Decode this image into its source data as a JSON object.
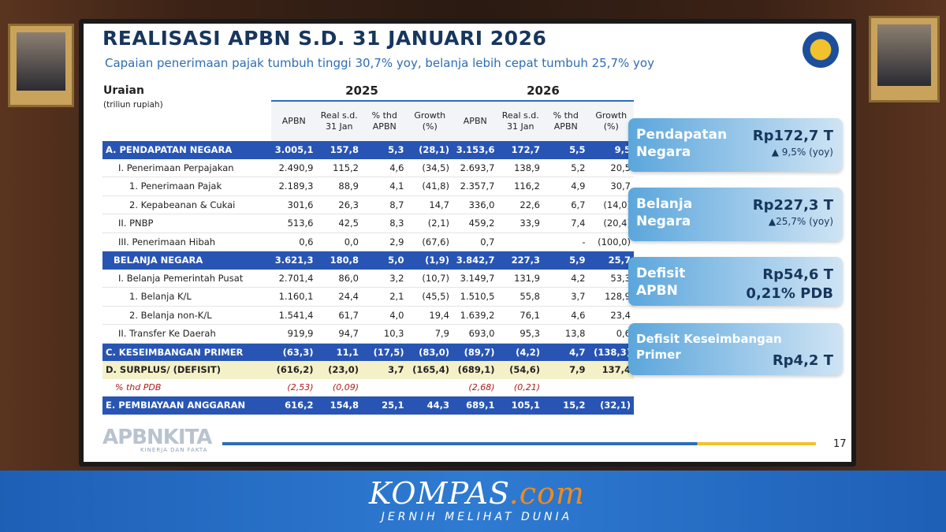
{
  "slide": {
    "title": "REALISASI APBN S.D. 31 JANUARI 2026",
    "subtitle": "Capaian penerimaan pajak tumbuh tinggi 30,7% yoy, belanja lebih cepat tumbuh 25,7% yoy",
    "logo_text": "APBNKITA",
    "logo_tagline": "KINERJA DAN FAKTA",
    "page_number": "17"
  },
  "table": {
    "header_label": "Uraian",
    "header_unit": "(triliun rupiah)",
    "years": [
      {
        "year": "2025",
        "columns": [
          "APBN",
          "Real s.d. 31 Jan",
          "% thd APBN",
          "Growth (%)"
        ]
      },
      {
        "year": "2026",
        "columns": [
          "APBN",
          "Real s.d. 31 Jan",
          "% thd APBN",
          "Growth (%)"
        ]
      }
    ],
    "rows": [
      {
        "label": "A. PENDAPATAN NEGARA",
        "kind": "section",
        "cells": [
          "3.005,1",
          "157,8",
          "5,3",
          "(28,1)",
          "3.153,6",
          "172,7",
          "5,5",
          "9,5"
        ]
      },
      {
        "label": "I. Penerimaan Perpajakan",
        "kind": "item",
        "cells": [
          "2.490,9",
          "115,2",
          "4,6",
          "(34,5)",
          "2.693,7",
          "138,9",
          "5,2",
          "20,5"
        ]
      },
      {
        "label": "1. Penerimaan Pajak",
        "kind": "item",
        "cells": [
          "2.189,3",
          "88,9",
          "4,1",
          "(41,8)",
          "2.357,7",
          "116,2",
          "4,9",
          "30,7"
        ]
      },
      {
        "label": "2. Kepabeanan & Cukai",
        "kind": "item",
        "cells": [
          "301,6",
          "26,3",
          "8,7",
          "14,7",
          "336,0",
          "22,6",
          "6,7",
          "(14,0)"
        ]
      },
      {
        "label": "II. PNBP",
        "kind": "item",
        "cells": [
          "513,6",
          "42,5",
          "8,3",
          "(2,1)",
          "459,2",
          "33,9",
          "7,4",
          "(20,4)"
        ]
      },
      {
        "label": "III. Penerimaan Hibah",
        "kind": "item",
        "cells": [
          "0,6",
          "0,0",
          "2,9",
          "(67,6)",
          "0,7",
          null,
          "-",
          "(100,0)"
        ]
      },
      {
        "label": "BELANJA NEGARA",
        "kind": "section",
        "cells": [
          "3.621,3",
          "180,8",
          "5,0",
          "(1,9)",
          "3.842,7",
          "227,3",
          "5,9",
          "25,7"
        ]
      },
      {
        "label": "I. Belanja Pemerintah Pusat",
        "kind": "item",
        "cells": [
          "2.701,4",
          "86,0",
          "3,2",
          "(10,7)",
          "3.149,7",
          "131,9",
          "4,2",
          "53,3"
        ]
      },
      {
        "label": "1. Belanja K/L",
        "kind": "item",
        "cells": [
          "1.160,1",
          "24,4",
          "2,1",
          "(45,5)",
          "1.510,5",
          "55,8",
          "3,7",
          "128,9"
        ]
      },
      {
        "label": "2. Belanja non-K/L",
        "kind": "item",
        "cells": [
          "1.541,4",
          "61,7",
          "4,0",
          "19,4",
          "1.639,2",
          "76,1",
          "4,6",
          "23,4"
        ]
      },
      {
        "label": "II. Transfer Ke Daerah",
        "kind": "item",
        "cells": [
          "919,9",
          "94,7",
          "10,3",
          "7,9",
          "693,0",
          "95,3",
          "13,8",
          "0,6"
        ]
      },
      {
        "label": "C. KESEIMBANGAN PRIMER",
        "kind": "section",
        "cells": [
          "(63,3)",
          "11,1",
          "(17,5)",
          "(83,0)",
          "(89,7)",
          "(4,2)",
          "4,7",
          "(138,3)"
        ]
      },
      {
        "label": "D. SURPLUS/ (DEFISIT)",
        "kind": "surplus",
        "cells": [
          "(616,2)",
          "(23,0)",
          "3,7",
          "(165,4)",
          "(689,1)",
          "(54,6)",
          "7,9",
          "137,4"
        ]
      },
      {
        "label": "% thd PDB",
        "kind": "ratio",
        "cells": [
          "(2,53)",
          "(0,09)",
          null,
          null,
          "(2,68)",
          "(0,21)",
          null,
          null
        ]
      },
      {
        "label": "E. PEMBIAYAAN ANGGARAN",
        "kind": "section",
        "cells": [
          "616,2",
          "154,8",
          "25,1",
          "44,3",
          "689,1",
          "105,1",
          "15,2",
          "(32,1)"
        ]
      }
    ]
  },
  "cards": [
    {
      "title": "Pendapatan Negara",
      "value": "Rp172,7 T",
      "note": "▲ 9,5% (yoy)"
    },
    {
      "title": "Belanja Negara",
      "value": "Rp227,3 T",
      "note": "▲25,7% (yoy)"
    },
    {
      "title": "Defisit APBN",
      "value": "Rp54,6 T",
      "note": "0,21% PDB"
    },
    {
      "title": "Defisit Keseimbangan Primer",
      "value": "Rp4,2 T"
    }
  ],
  "footer": {
    "brand": "KOMPAS",
    "brand_suffix": ".com",
    "tagline": "JERNIH MELIHAT DUNIA"
  }
}
